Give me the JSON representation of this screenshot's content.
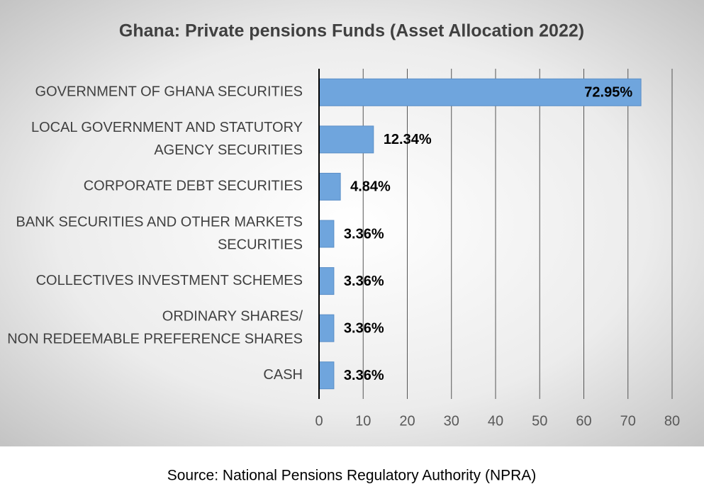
{
  "chart_data": {
    "type": "bar",
    "orientation": "horizontal",
    "title": "Ghana: Private pensions Funds (Asset Allocation 2022)",
    "categories": [
      [
        "GOVERNMENT OF GHANA SECURITIES"
      ],
      [
        "LOCAL GOVERNMENT AND STATUTORY",
        "AGENCY SECURITIES"
      ],
      [
        "CORPORATE DEBT SECURITIES"
      ],
      [
        "BANK SECURITIES AND OTHER MARKETS",
        "SECURITIES"
      ],
      [
        "COLLECTIVES INVESTMENT SCHEMES"
      ],
      [
        "ORDINARY SHARES/",
        "NON REDEEMABLE PREFERENCE SHARES"
      ],
      [
        "CASH"
      ]
    ],
    "values": [
      72.95,
      12.34,
      4.84,
      3.36,
      3.36,
      3.36,
      3.36
    ],
    "value_labels": [
      "72.95%",
      "12.34%",
      "4.84%",
      "3.36%",
      "3.36%",
      "3.36%",
      "3.36%"
    ],
    "color": "#6fa5dd",
    "xlim": [
      0,
      80
    ],
    "xticks": [
      0,
      10,
      20,
      30,
      40,
      50,
      60,
      70,
      80
    ],
    "grid": true,
    "source": "Source: National Pensions Regulatory Authority (NPRA)"
  }
}
